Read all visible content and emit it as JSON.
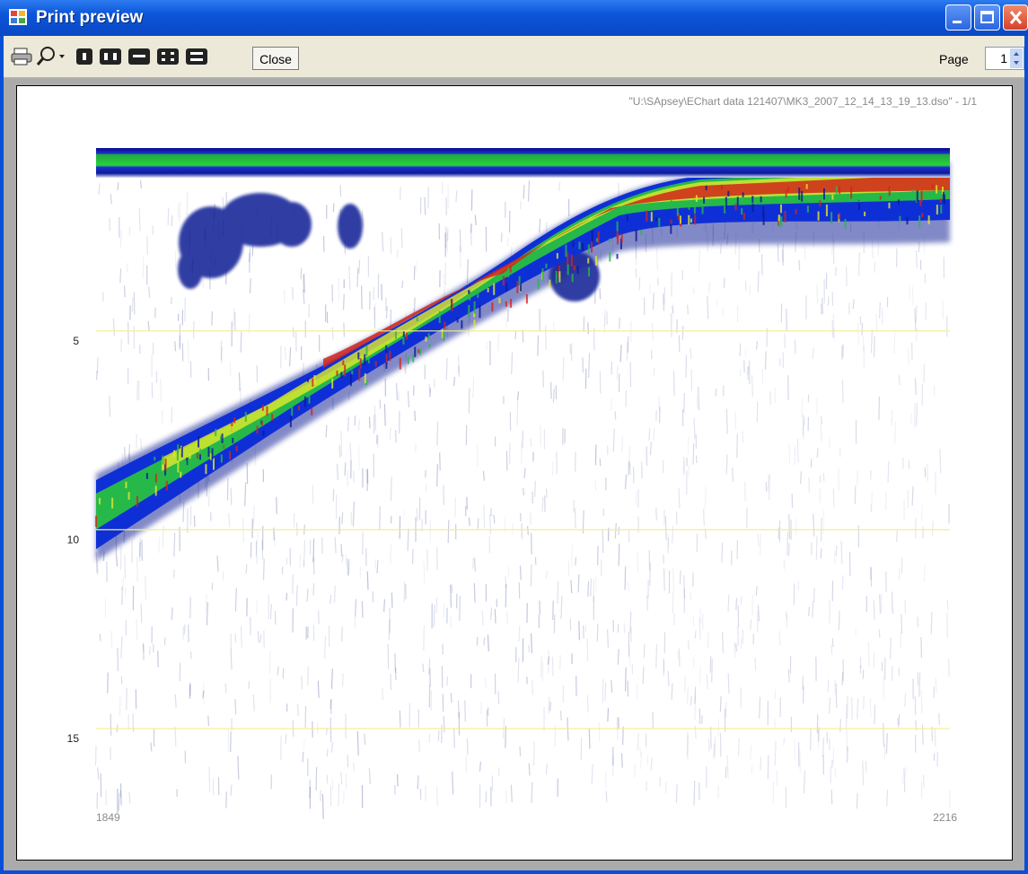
{
  "window": {
    "title": "Print preview"
  },
  "toolbar": {
    "close": "Close",
    "page_label": "Page",
    "page_number": 1
  },
  "chart_data": {
    "type": "echogram",
    "subtitle": "\"U:\\SApsey\\EChart data 121407\\MK3_2007_12_14_13_19_13.dso\" - 1/1",
    "ylim": [
      0.4,
      17.1
    ],
    "yticks": [
      5,
      10,
      15
    ],
    "xlim": [
      1849,
      2216
    ],
    "xticks": [
      1849,
      2216
    ],
    "grid": true,
    "grid_color": "#f3ee8c"
  }
}
